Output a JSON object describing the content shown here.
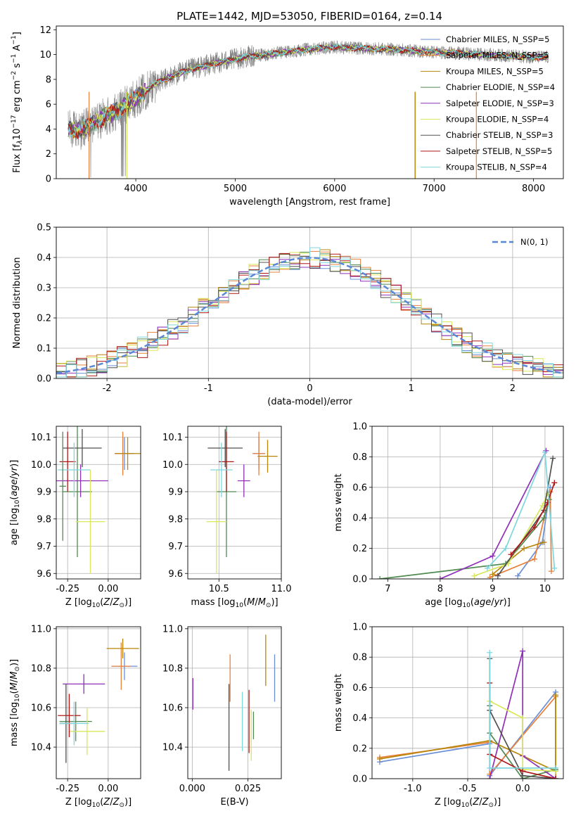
{
  "title": "PLATE=1442, MJD=53050, FIBERID=0164, z=0.14",
  "series": [
    {
      "name": "Chabrier MILES, N_SSP=5",
      "color": "#6a8fd5"
    },
    {
      "name": "Salpeter MILES, N_SSP=5",
      "color": "#e8803a"
    },
    {
      "name": "Kroupa MILES, N_SSP=5",
      "color": "#b8860b"
    },
    {
      "name": "Chabrier ELODIE, N_SSP=4",
      "color": "#4f8a4f"
    },
    {
      "name": "Salpeter ELODIE, N_SSP=3",
      "color": "#9030b8"
    },
    {
      "name": "Kroupa ELODIE, N_SSP=4",
      "color": "#d8e85a"
    },
    {
      "name": "Chabrier STELIB, N_SSP=3",
      "color": "#505050"
    },
    {
      "name": "Salpeter STELIB, N_SSP=5",
      "color": "#b01818"
    },
    {
      "name": "Kroupa STELIB, N_SSP=4",
      "color": "#7fd6dd"
    }
  ],
  "chart_data": [
    {
      "id": "spectrum",
      "type": "line",
      "xlabel": "wavelength [Angstrom, rest frame]",
      "ylabel": "Flux [f_λ10^-17 erg cm^-2 s^-1 A^-1]",
      "xlim": [
        3200,
        8300
      ],
      "ylim": [
        0,
        12.3
      ],
      "xticks": [
        4000,
        5000,
        6000,
        7000,
        8000
      ],
      "yticks": [
        0,
        2,
        4,
        6,
        8,
        10,
        12
      ],
      "grid": false,
      "legend": "top-right",
      "continuum": {
        "x": [
          3320,
          3450,
          3600,
          3800,
          4000,
          4200,
          4500,
          4800,
          5100,
          5400,
          5700,
          6000,
          6300,
          6600,
          7000,
          7500,
          8000,
          8150
        ],
        "y": [
          4.0,
          3.9,
          4.6,
          5.4,
          6.5,
          7.7,
          8.7,
          9.3,
          9.8,
          10.1,
          10.4,
          10.6,
          10.5,
          10.4,
          10.2,
          10.0,
          9.8,
          9.8
        ]
      }
    },
    {
      "id": "residuals",
      "type": "line",
      "xlabel": "(data-model)/error",
      "ylabel": "Normed distribution",
      "xlim": [
        -2.5,
        2.5
      ],
      "ylim": [
        0,
        0.5
      ],
      "xticks": [
        -2,
        -1,
        0,
        1,
        2
      ],
      "yticks": [
        0.0,
        0.1,
        0.2,
        0.3,
        0.4,
        0.5
      ],
      "grid": true,
      "legend": "top-right",
      "legend_label": "N(0, 1)",
      "reference": {
        "name": "N(0, 1)",
        "mu": 0,
        "sigma": 1,
        "color": "#5b88d6"
      }
    },
    {
      "id": "age-vs-Z",
      "type": "scatter",
      "xlabel": "Z [log10(Z/Z⊙)]",
      "ylabel": "age  [log10(age/yr)]",
      "xlim": [
        -0.32,
        0.2
      ],
      "ylim": [
        9.58,
        10.14
      ],
      "xticks": [
        -0.25,
        0.0
      ],
      "yticks": [
        9.6,
        9.7,
        9.8,
        9.9,
        10.0,
        10.1
      ],
      "points": [
        {
          "x": 0.1,
          "y": 10.04,
          "xerr": 0.06,
          "yerr": 0.06,
          "series": 0
        },
        {
          "x": 0.09,
          "y": 10.04,
          "xerr": 0.05,
          "yerr": 0.08,
          "series": 1
        },
        {
          "x": 0.12,
          "y": 10.04,
          "xerr": 0.08,
          "yerr": 0.06,
          "series": 2
        },
        {
          "x": -0.19,
          "y": 9.9,
          "xerr": 0.09,
          "yerr": 0.24,
          "series": 3
        },
        {
          "x": -0.17,
          "y": 9.94,
          "xerr": 0.17,
          "yerr": 0.06,
          "series": 4
        },
        {
          "x": -0.11,
          "y": 9.79,
          "xerr": 0.09,
          "yerr": 0.19,
          "series": 5
        },
        {
          "x": -0.16,
          "y": 10.06,
          "xerr": 0.12,
          "yerr": 0.07,
          "series": 6
        },
        {
          "x": -0.25,
          "y": 10.01,
          "xerr": 0.05,
          "yerr": 0.11,
          "series": 7
        },
        {
          "x": -0.21,
          "y": 9.98,
          "xerr": 0.1,
          "yerr": 0.1,
          "series": 8
        },
        {
          "x": -0.28,
          "y": 9.92,
          "xerr": 0.02,
          "yerr": 0.2,
          "series": 3
        }
      ]
    },
    {
      "id": "age-vs-mass",
      "type": "scatter",
      "xlabel": "mass [log10(M/M⊙)]",
      "ylabel": "",
      "xlim": [
        10.25,
        11.0
      ],
      "ylim": [
        9.58,
        10.14
      ],
      "xticks": [
        10.5,
        11.0
      ],
      "yticks": [
        9.6,
        9.7,
        9.8,
        9.9,
        10.0,
        10.1
      ],
      "points": [
        {
          "x": 10.82,
          "y": 10.04,
          "xerr": 0.05,
          "yerr": 0.06,
          "series": 0
        },
        {
          "x": 10.82,
          "y": 10.04,
          "xerr": 0.05,
          "yerr": 0.08,
          "series": 1
        },
        {
          "x": 10.89,
          "y": 10.03,
          "xerr": 0.08,
          "yerr": 0.06,
          "series": 2
        },
        {
          "x": 10.56,
          "y": 9.9,
          "xerr": 0.08,
          "yerr": 0.24,
          "series": 3
        },
        {
          "x": 10.7,
          "y": 9.94,
          "xerr": 0.05,
          "yerr": 0.06,
          "series": 4
        },
        {
          "x": 10.48,
          "y": 9.79,
          "xerr": 0.08,
          "yerr": 0.19,
          "series": 5
        },
        {
          "x": 10.55,
          "y": 10.06,
          "xerr": 0.14,
          "yerr": 0.07,
          "series": 6
        },
        {
          "x": 10.56,
          "y": 10.01,
          "xerr": 0.06,
          "yerr": 0.11,
          "series": 7
        },
        {
          "x": 10.52,
          "y": 9.98,
          "xerr": 0.09,
          "yerr": 0.1,
          "series": 8
        }
      ]
    },
    {
      "id": "weight-vs-age",
      "type": "line",
      "xlabel": "age  [log10(age/yr)]",
      "ylabel": "mass weight",
      "xlim": [
        6.7,
        10.35
      ],
      "ylim": [
        0,
        1.0
      ],
      "xticks": [
        7,
        8,
        9,
        10
      ],
      "yticks": [
        0.0,
        0.2,
        0.4,
        0.6,
        0.8,
        1.0
      ],
      "series": [
        {
          "series": 0,
          "x": [
            9.48,
            9.95,
            10.1
          ],
          "y": [
            0.02,
            0.24,
            0.6
          ]
        },
        {
          "series": 1,
          "x": [
            8.95,
            9.8,
            10.1,
            10.12
          ],
          "y": [
            0.01,
            0.13,
            0.57,
            0.05
          ]
        },
        {
          "series": 2,
          "x": [
            9.0,
            9.6,
            9.98
          ],
          "y": [
            0.03,
            0.2,
            0.24
          ]
        },
        {
          "series": 3,
          "x": [
            6.85,
            9.25,
            9.98,
            10.08
          ],
          "y": [
            0.0,
            0.1,
            0.4,
            0.52
          ]
        },
        {
          "series": 4,
          "x": [
            8.0,
            9.0,
            10.02
          ],
          "y": [
            0.0,
            0.15,
            0.84
          ]
        },
        {
          "series": 5,
          "x": [
            8.65,
            9.3,
            9.95,
            10.05
          ],
          "y": [
            0.02,
            0.1,
            0.48,
            0.56
          ]
        },
        {
          "series": 6,
          "x": [
            9.1,
            9.98,
            10.15
          ],
          "y": [
            0.02,
            0.45,
            0.79
          ]
        },
        {
          "series": 7,
          "x": [
            9.35,
            9.8,
            10.05,
            10.18
          ],
          "y": [
            0.16,
            0.34,
            0.5,
            0.63
          ]
        },
        {
          "series": 8,
          "x": [
            8.9,
            9.25,
            10.0,
            10.18
          ],
          "y": [
            0.07,
            0.2,
            0.83,
            0.07
          ]
        }
      ]
    },
    {
      "id": "mass-vs-Z",
      "type": "scatter",
      "xlabel": "Z [log10(Z/Z⊙)]",
      "ylabel": "mass [log10(M/M⊙)]",
      "xlim": [
        -0.32,
        0.2
      ],
      "ylim": [
        10.24,
        11.01
      ],
      "xticks": [
        -0.25,
        0.0
      ],
      "yticks": [
        10.4,
        10.6,
        10.8,
        11.0
      ],
      "points": [
        {
          "x": 0.1,
          "y": 10.81,
          "xerr": 0.08,
          "yerr": 0.07,
          "series": 0
        },
        {
          "x": 0.08,
          "y": 10.81,
          "xerr": 0.06,
          "yerr": 0.12,
          "series": 1
        },
        {
          "x": 0.09,
          "y": 10.9,
          "xerr": 0.1,
          "yerr": 0.05,
          "series": 2
        },
        {
          "x": -0.2,
          "y": 10.53,
          "xerr": 0.1,
          "yerr": 0.1,
          "series": 3
        },
        {
          "x": -0.15,
          "y": 10.72,
          "xerr": 0.13,
          "yerr": 0.05,
          "series": 4
        },
        {
          "x": -0.13,
          "y": 10.48,
          "xerr": 0.11,
          "yerr": 0.12,
          "series": 5
        },
        {
          "x": -0.26,
          "y": 10.52,
          "xerr": 0.04,
          "yerr": 0.2,
          "series": 6
        },
        {
          "x": -0.24,
          "y": 10.56,
          "xerr": 0.07,
          "yerr": 0.11,
          "series": 7
        },
        {
          "x": -0.21,
          "y": 10.52,
          "xerr": 0.09,
          "yerr": 0.11,
          "series": 8
        }
      ]
    },
    {
      "id": "mass-vs-ebv",
      "type": "scatter",
      "xlabel": "E(B-V)",
      "ylabel": "",
      "xlim": [
        -0.002,
        0.04
      ],
      "ylim": [
        10.24,
        11.01
      ],
      "xticks": [
        0.0,
        0.025
      ],
      "xtick_labels": [
        "0.000",
        "0.025"
      ],
      "yticks": [
        10.4,
        10.6,
        10.8,
        11.0
      ],
      "points": [
        {
          "x": 0.037,
          "y": 10.75,
          "yerr": 0.12,
          "series": 0
        },
        {
          "x": 0.017,
          "y": 10.75,
          "yerr": 0.12,
          "series": 1
        },
        {
          "x": 0.033,
          "y": 10.84,
          "yerr": 0.13,
          "series": 2
        },
        {
          "x": 0.0275,
          "y": 10.51,
          "yerr": 0.07,
          "series": 3
        },
        {
          "x": 0.0003,
          "y": 10.67,
          "yerr": 0.08,
          "series": 4
        },
        {
          "x": 0.0265,
          "y": 10.46,
          "yerr": 0.13,
          "series": 5
        },
        {
          "x": 0.0165,
          "y": 10.5,
          "yerr": 0.22,
          "series": 6
        },
        {
          "x": 0.0255,
          "y": 10.53,
          "yerr": 0.16,
          "series": 7
        },
        {
          "x": 0.0225,
          "y": 10.53,
          "yerr": 0.15,
          "series": 8
        }
      ]
    },
    {
      "id": "weight-vs-Z",
      "type": "line",
      "xlabel": "Z [log10(Z/Z⊙)]",
      "ylabel": "mass weight",
      "xlim": [
        -1.37,
        0.37
      ],
      "ylim": [
        0,
        1.0
      ],
      "xticks": [
        -1.0,
        -0.5,
        0.0
      ],
      "yticks": [
        0.0,
        0.2,
        0.4,
        0.6,
        0.8,
        1.0
      ],
      "series": [
        {
          "series": 0,
          "x": [
            -1.3,
            -0.3,
            -0.3,
            0.3,
            0.3
          ],
          "y": [
            0.11,
            0.23,
            0.02,
            0.57,
            0.07
          ]
        },
        {
          "series": 1,
          "x": [
            -1.3,
            -0.3,
            -0.3,
            0.3,
            0.3
          ],
          "y": [
            0.14,
            0.24,
            0.03,
            0.54,
            0.0
          ]
        },
        {
          "series": 2,
          "x": [
            -1.3,
            -0.3,
            0.3,
            0.3
          ],
          "y": [
            0.13,
            0.25,
            0.05,
            0.55
          ]
        },
        {
          "series": 3,
          "x": [
            -0.3,
            -0.3,
            0.0,
            0.3
          ],
          "y": [
            0.48,
            0.3,
            0.0,
            0.06
          ]
        },
        {
          "series": 4,
          "x": [
            -0.3,
            0.0,
            0.0,
            0.3
          ],
          "y": [
            0.0,
            0.84,
            0.15,
            0.0
          ]
        },
        {
          "series": 5,
          "x": [
            -0.3,
            0.0,
            0.0,
            0.3
          ],
          "y": [
            0.51,
            0.4,
            0.06,
            0.05
          ]
        },
        {
          "series": 6,
          "x": [
            -0.3,
            -0.3,
            0.0,
            0.3
          ],
          "y": [
            0.79,
            0.45,
            0.02,
            0.0
          ]
        },
        {
          "series": 7,
          "x": [
            -0.3,
            -0.3,
            0.0,
            0.3
          ],
          "y": [
            0.63,
            0.16,
            0.05,
            0.0
          ]
        },
        {
          "series": 8,
          "x": [
            -0.3,
            -0.3,
            0.3
          ],
          "y": [
            0.83,
            0.07,
            0.07
          ]
        }
      ]
    }
  ]
}
